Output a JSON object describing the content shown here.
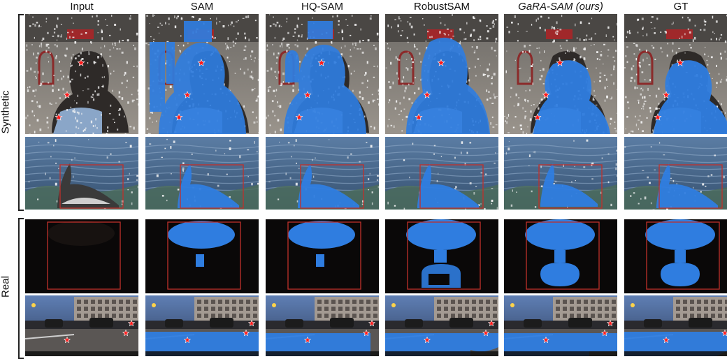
{
  "columns": [
    {
      "label": "Input",
      "method": "input"
    },
    {
      "label": "SAM",
      "method": "sam"
    },
    {
      "label": "HQ-SAM",
      "method": "hqsam"
    },
    {
      "label": "RobustSAM",
      "method": "robustsam"
    },
    {
      "label": "GaRA-SAM (ours)",
      "method": "gara",
      "italic": true
    },
    {
      "label": "GT",
      "method": "gt"
    }
  ],
  "groups": [
    {
      "label": "Synthetic"
    },
    {
      "label": "Real"
    }
  ],
  "colors": {
    "mask": "#2f7de0",
    "prompt_star": "#ff1a1a",
    "box": "#c0302b"
  }
}
